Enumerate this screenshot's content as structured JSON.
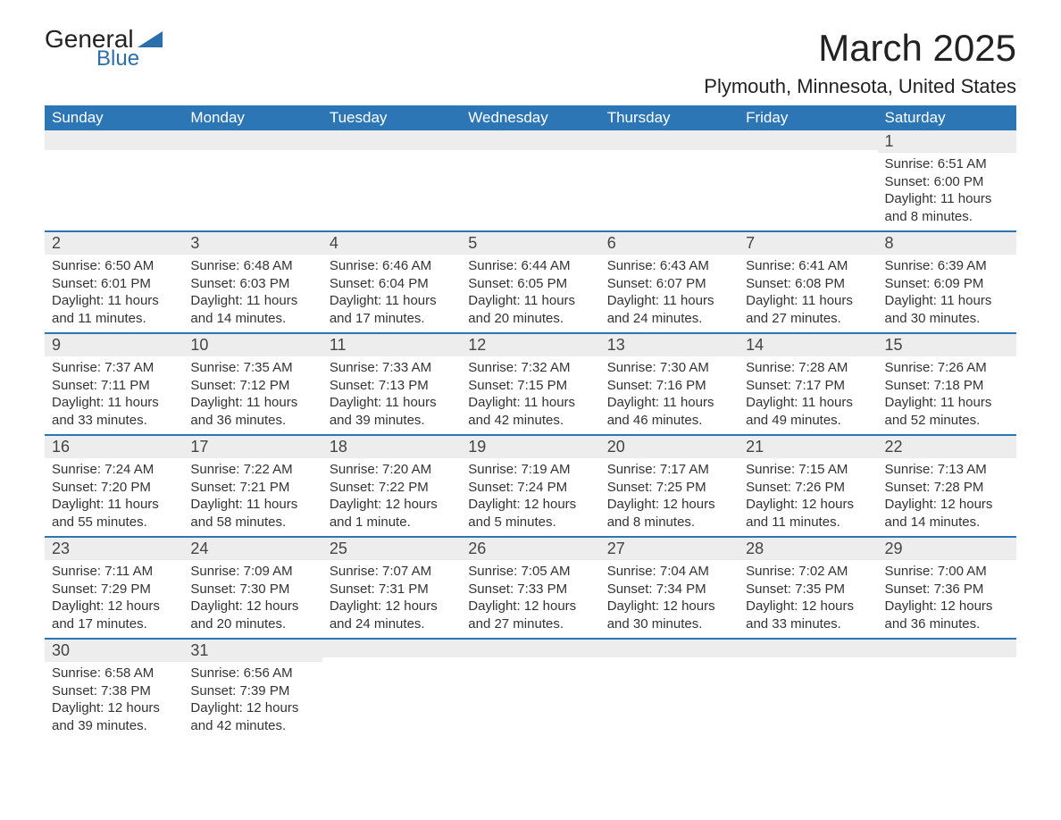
{
  "logo": {
    "text_general": "General",
    "text_blue": "Blue"
  },
  "title": {
    "month": "March 2025",
    "location": "Plymouth, Minnesota, United States"
  },
  "colors": {
    "header_bg": "#2d76b5",
    "header_text": "#ffffff",
    "daynum_bg": "#ededed",
    "border_top": "#2d76b5",
    "body_text": "#333333",
    "title_text": "#222222"
  },
  "week_headers": [
    "Sunday",
    "Monday",
    "Tuesday",
    "Wednesday",
    "Thursday",
    "Friday",
    "Saturday"
  ],
  "weeks": [
    [
      {
        "empty": true
      },
      {
        "empty": true
      },
      {
        "empty": true
      },
      {
        "empty": true
      },
      {
        "empty": true
      },
      {
        "empty": true
      },
      {
        "num": "1",
        "sunrise": "Sunrise: 6:51 AM",
        "sunset": "Sunset: 6:00 PM",
        "daylight": "Daylight: 11 hours and 8 minutes."
      }
    ],
    [
      {
        "num": "2",
        "sunrise": "Sunrise: 6:50 AM",
        "sunset": "Sunset: 6:01 PM",
        "daylight": "Daylight: 11 hours and 11 minutes."
      },
      {
        "num": "3",
        "sunrise": "Sunrise: 6:48 AM",
        "sunset": "Sunset: 6:03 PM",
        "daylight": "Daylight: 11 hours and 14 minutes."
      },
      {
        "num": "4",
        "sunrise": "Sunrise: 6:46 AM",
        "sunset": "Sunset: 6:04 PM",
        "daylight": "Daylight: 11 hours and 17 minutes."
      },
      {
        "num": "5",
        "sunrise": "Sunrise: 6:44 AM",
        "sunset": "Sunset: 6:05 PM",
        "daylight": "Daylight: 11 hours and 20 minutes."
      },
      {
        "num": "6",
        "sunrise": "Sunrise: 6:43 AM",
        "sunset": "Sunset: 6:07 PM",
        "daylight": "Daylight: 11 hours and 24 minutes."
      },
      {
        "num": "7",
        "sunrise": "Sunrise: 6:41 AM",
        "sunset": "Sunset: 6:08 PM",
        "daylight": "Daylight: 11 hours and 27 minutes."
      },
      {
        "num": "8",
        "sunrise": "Sunrise: 6:39 AM",
        "sunset": "Sunset: 6:09 PM",
        "daylight": "Daylight: 11 hours and 30 minutes."
      }
    ],
    [
      {
        "num": "9",
        "sunrise": "Sunrise: 7:37 AM",
        "sunset": "Sunset: 7:11 PM",
        "daylight": "Daylight: 11 hours and 33 minutes."
      },
      {
        "num": "10",
        "sunrise": "Sunrise: 7:35 AM",
        "sunset": "Sunset: 7:12 PM",
        "daylight": "Daylight: 11 hours and 36 minutes."
      },
      {
        "num": "11",
        "sunrise": "Sunrise: 7:33 AM",
        "sunset": "Sunset: 7:13 PM",
        "daylight": "Daylight: 11 hours and 39 minutes."
      },
      {
        "num": "12",
        "sunrise": "Sunrise: 7:32 AM",
        "sunset": "Sunset: 7:15 PM",
        "daylight": "Daylight: 11 hours and 42 minutes."
      },
      {
        "num": "13",
        "sunrise": "Sunrise: 7:30 AM",
        "sunset": "Sunset: 7:16 PM",
        "daylight": "Daylight: 11 hours and 46 minutes."
      },
      {
        "num": "14",
        "sunrise": "Sunrise: 7:28 AM",
        "sunset": "Sunset: 7:17 PM",
        "daylight": "Daylight: 11 hours and 49 minutes."
      },
      {
        "num": "15",
        "sunrise": "Sunrise: 7:26 AM",
        "sunset": "Sunset: 7:18 PM",
        "daylight": "Daylight: 11 hours and 52 minutes."
      }
    ],
    [
      {
        "num": "16",
        "sunrise": "Sunrise: 7:24 AM",
        "sunset": "Sunset: 7:20 PM",
        "daylight": "Daylight: 11 hours and 55 minutes."
      },
      {
        "num": "17",
        "sunrise": "Sunrise: 7:22 AM",
        "sunset": "Sunset: 7:21 PM",
        "daylight": "Daylight: 11 hours and 58 minutes."
      },
      {
        "num": "18",
        "sunrise": "Sunrise: 7:20 AM",
        "sunset": "Sunset: 7:22 PM",
        "daylight": "Daylight: 12 hours and 1 minute."
      },
      {
        "num": "19",
        "sunrise": "Sunrise: 7:19 AM",
        "sunset": "Sunset: 7:24 PM",
        "daylight": "Daylight: 12 hours and 5 minutes."
      },
      {
        "num": "20",
        "sunrise": "Sunrise: 7:17 AM",
        "sunset": "Sunset: 7:25 PM",
        "daylight": "Daylight: 12 hours and 8 minutes."
      },
      {
        "num": "21",
        "sunrise": "Sunrise: 7:15 AM",
        "sunset": "Sunset: 7:26 PM",
        "daylight": "Daylight: 12 hours and 11 minutes."
      },
      {
        "num": "22",
        "sunrise": "Sunrise: 7:13 AM",
        "sunset": "Sunset: 7:28 PM",
        "daylight": "Daylight: 12 hours and 14 minutes."
      }
    ],
    [
      {
        "num": "23",
        "sunrise": "Sunrise: 7:11 AM",
        "sunset": "Sunset: 7:29 PM",
        "daylight": "Daylight: 12 hours and 17 minutes."
      },
      {
        "num": "24",
        "sunrise": "Sunrise: 7:09 AM",
        "sunset": "Sunset: 7:30 PM",
        "daylight": "Daylight: 12 hours and 20 minutes."
      },
      {
        "num": "25",
        "sunrise": "Sunrise: 7:07 AM",
        "sunset": "Sunset: 7:31 PM",
        "daylight": "Daylight: 12 hours and 24 minutes."
      },
      {
        "num": "26",
        "sunrise": "Sunrise: 7:05 AM",
        "sunset": "Sunset: 7:33 PM",
        "daylight": "Daylight: 12 hours and 27 minutes."
      },
      {
        "num": "27",
        "sunrise": "Sunrise: 7:04 AM",
        "sunset": "Sunset: 7:34 PM",
        "daylight": "Daylight: 12 hours and 30 minutes."
      },
      {
        "num": "28",
        "sunrise": "Sunrise: 7:02 AM",
        "sunset": "Sunset: 7:35 PM",
        "daylight": "Daylight: 12 hours and 33 minutes."
      },
      {
        "num": "29",
        "sunrise": "Sunrise: 7:00 AM",
        "sunset": "Sunset: 7:36 PM",
        "daylight": "Daylight: 12 hours and 36 minutes."
      }
    ],
    [
      {
        "num": "30",
        "sunrise": "Sunrise: 6:58 AM",
        "sunset": "Sunset: 7:38 PM",
        "daylight": "Daylight: 12 hours and 39 minutes."
      },
      {
        "num": "31",
        "sunrise": "Sunrise: 6:56 AM",
        "sunset": "Sunset: 7:39 PM",
        "daylight": "Daylight: 12 hours and 42 minutes."
      },
      {
        "trailing": true
      },
      {
        "trailing": true
      },
      {
        "trailing": true
      },
      {
        "trailing": true
      },
      {
        "trailing": true
      }
    ]
  ]
}
